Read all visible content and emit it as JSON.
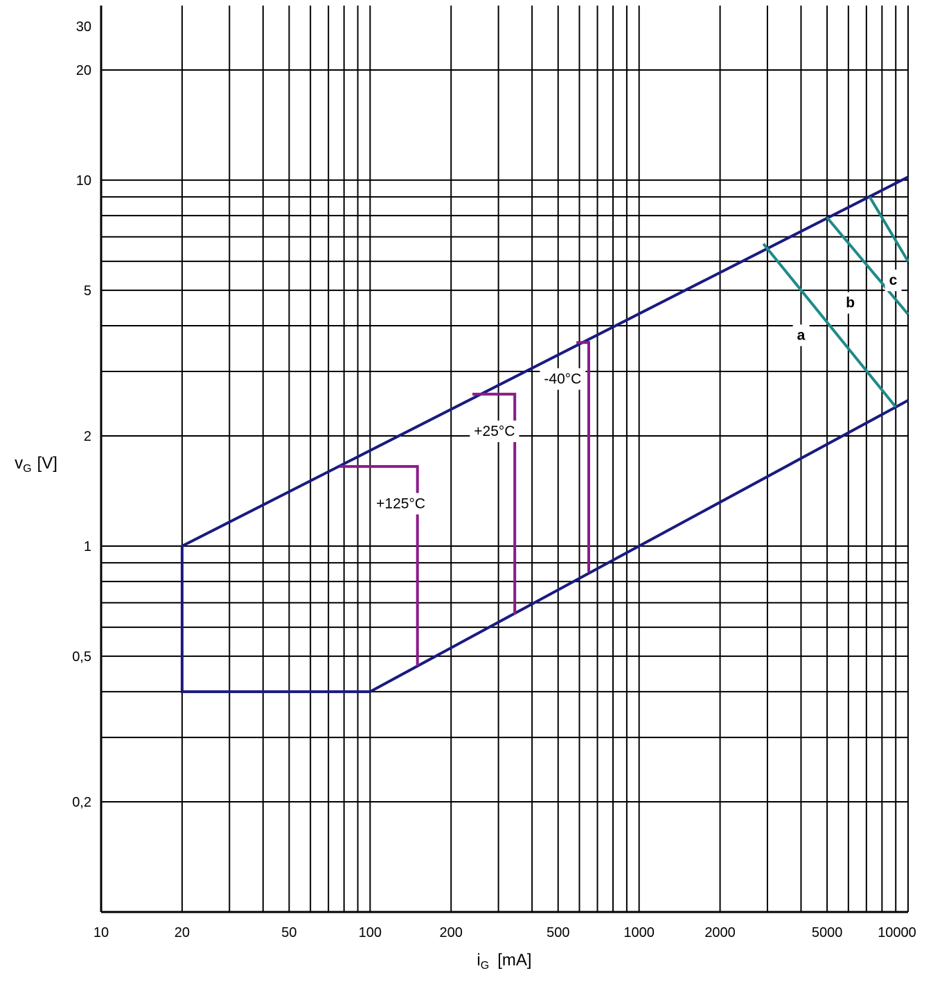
{
  "chart_data": {
    "type": "line",
    "x_scale": "log",
    "y_scale": "log",
    "xlim": [
      10,
      10000
    ],
    "ylim": [
      0.1,
      30
    ],
    "grid": true,
    "x_label": {
      "main": "i",
      "sub": "G",
      "unit": "[mA]"
    },
    "y_label": {
      "main": "v",
      "sub": "G",
      "unit": "[V]"
    },
    "x_ticks": [
      {
        "value": 10,
        "label": "10"
      },
      {
        "value": 20,
        "label": "20"
      },
      {
        "value": 50,
        "label": "50"
      },
      {
        "value": 100,
        "label": "100"
      },
      {
        "value": 200,
        "label": "200"
      },
      {
        "value": 500,
        "label": "500"
      },
      {
        "value": 1000,
        "label": "1000"
      },
      {
        "value": 2000,
        "label": "2000"
      },
      {
        "value": 5000,
        "label": "5000"
      },
      {
        "value": 10000,
        "label": "10000"
      }
    ],
    "y_ticks": [
      {
        "value": 0.2,
        "label": "0,2"
      },
      {
        "value": 0.5,
        "label": "0,5"
      },
      {
        "value": 1,
        "label": "1"
      },
      {
        "value": 2,
        "label": "2"
      },
      {
        "value": 5,
        "label": "5"
      },
      {
        "value": 10,
        "label": "10"
      },
      {
        "value": 20,
        "label": "20"
      },
      {
        "value": 30,
        "label": "30"
      }
    ],
    "x_grid": [
      20,
      30,
      40,
      50,
      60,
      70,
      80,
      90,
      100,
      200,
      300,
      400,
      500,
      600,
      700,
      800,
      900,
      1000,
      2000,
      3000,
      4000,
      5000,
      6000,
      7000,
      8000,
      9000
    ],
    "y_grid": [
      0.2,
      0.3,
      0.4,
      0.5,
      0.6,
      0.7,
      0.8,
      0.9,
      1,
      2,
      3,
      4,
      5,
      6,
      7,
      8,
      9,
      10,
      20
    ],
    "series": [
      {
        "role": "boundary",
        "color": "#1a1a80",
        "points": [
          [
            100,
            0.4
          ],
          [
            20,
            0.4
          ],
          [
            20,
            1
          ],
          [
            10000,
            10.2
          ]
        ]
      },
      {
        "role": "boundary",
        "color": "#1a1a80",
        "points": [
          [
            100,
            0.4
          ],
          [
            10000,
            2.5
          ]
        ]
      },
      {
        "name": "+125°C",
        "color": "#8b1a8b",
        "points": [
          [
            77,
            1.65
          ],
          [
            150,
            1.65
          ],
          [
            150,
            0.47
          ]
        ]
      },
      {
        "name": "+25°C",
        "color": "#8b1a8b",
        "points": [
          [
            240,
            2.6
          ],
          [
            345,
            2.6
          ],
          [
            345,
            0.65
          ]
        ]
      },
      {
        "name": "-40°C",
        "color": "#8b1a8b",
        "points": [
          [
            585,
            3.6
          ],
          [
            650,
            3.6
          ],
          [
            650,
            0.85
          ]
        ]
      },
      {
        "name": "a",
        "color": "#1f8a8a",
        "points": [
          [
            2900,
            6.7
          ],
          [
            9000,
            2.4
          ]
        ]
      },
      {
        "name": "b",
        "color": "#1f8a8a",
        "points": [
          [
            5000,
            7.9
          ],
          [
            10000,
            4.3
          ]
        ]
      },
      {
        "name": "c",
        "color": "#1f8a8a",
        "points": [
          [
            7200,
            9.0
          ],
          [
            10000,
            6.0
          ]
        ]
      }
    ],
    "annotations": [
      {
        "text": "+125°C",
        "x": 130,
        "y": 1.3,
        "style": "normal"
      },
      {
        "text": "+25°C",
        "x": 290,
        "y": 2.05,
        "style": "normal"
      },
      {
        "text": "-40°C",
        "x": 520,
        "y": 2.85,
        "style": "normal"
      },
      {
        "text": "a",
        "x": 4000,
        "y": 3.75,
        "style": "bold"
      },
      {
        "text": "b",
        "x": 6100,
        "y": 4.6,
        "style": "bold"
      },
      {
        "text": "c",
        "x": 8800,
        "y": 5.3,
        "style": "bold"
      }
    ]
  }
}
